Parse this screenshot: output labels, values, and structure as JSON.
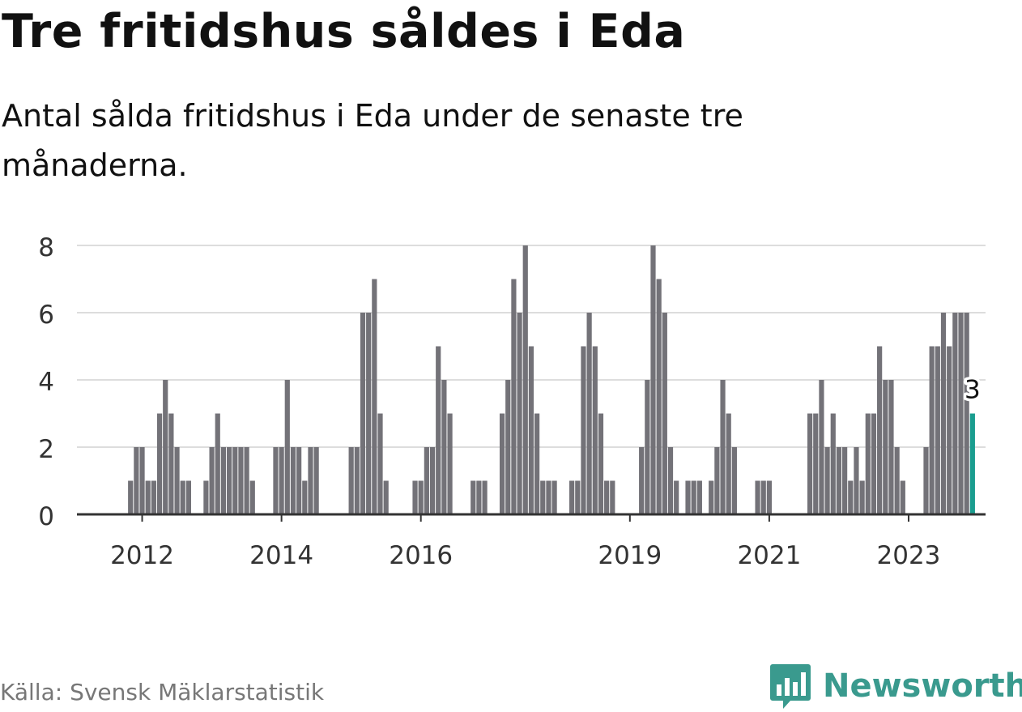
{
  "header": {
    "title": "Tre fritidshus såldes i Eda",
    "subtitle": "Antal sålda fritidshus i Eda under de senaste tre månaderna."
  },
  "footer": {
    "source": "Källa: Svensk Mäklarstatistik",
    "brand": "Newsworthy",
    "brand_icon": "bar-chart-logo-icon"
  },
  "colors": {
    "bar": "#737278",
    "highlight": "#1a9d8f",
    "grid": "#dddddd",
    "axis": "#333333",
    "brand": "#3a9a8e"
  },
  "chart_data": {
    "type": "bar",
    "x_unit": "month",
    "x": [
      "2011-01",
      "2011-02",
      "2011-03",
      "2011-04",
      "2011-05",
      "2011-06",
      "2011-07",
      "2011-08",
      "2011-09",
      "2011-10",
      "2011-11",
      "2011-12",
      "2012-01",
      "2012-02",
      "2012-03",
      "2012-04",
      "2012-05",
      "2012-06",
      "2012-07",
      "2012-08",
      "2012-09",
      "2012-10",
      "2012-11",
      "2012-12",
      "2013-01",
      "2013-02",
      "2013-03",
      "2013-04",
      "2013-05",
      "2013-06",
      "2013-07",
      "2013-08",
      "2013-09",
      "2013-10",
      "2013-11",
      "2013-12",
      "2014-01",
      "2014-02",
      "2014-03",
      "2014-04",
      "2014-05",
      "2014-06",
      "2014-07",
      "2014-08",
      "2014-09",
      "2014-10",
      "2014-11",
      "2014-12",
      "2015-01",
      "2015-02",
      "2015-03",
      "2015-04",
      "2015-05",
      "2015-06",
      "2015-07",
      "2015-08",
      "2015-09",
      "2015-10",
      "2015-11",
      "2015-12",
      "2016-01",
      "2016-02",
      "2016-03",
      "2016-04",
      "2016-05",
      "2016-06",
      "2016-07",
      "2016-08",
      "2016-09",
      "2016-10",
      "2016-11",
      "2016-12",
      "2017-01",
      "2017-02",
      "2017-03",
      "2017-04",
      "2017-05",
      "2017-06",
      "2017-07",
      "2017-08",
      "2017-09",
      "2017-10",
      "2017-11",
      "2017-12",
      "2018-01",
      "2018-02",
      "2018-03",
      "2018-04",
      "2018-05",
      "2018-06",
      "2018-07",
      "2018-08",
      "2018-09",
      "2018-10",
      "2018-11",
      "2018-12",
      "2019-01",
      "2019-02",
      "2019-03",
      "2019-04",
      "2019-05",
      "2019-06",
      "2019-07",
      "2019-08",
      "2019-09",
      "2019-10",
      "2019-11",
      "2019-12",
      "2020-01",
      "2020-02",
      "2020-03",
      "2020-04",
      "2020-05",
      "2020-06",
      "2020-07",
      "2020-08",
      "2020-09",
      "2020-10",
      "2020-11",
      "2020-12",
      "2021-01",
      "2021-02",
      "2021-03",
      "2021-04",
      "2021-05",
      "2021-06",
      "2021-07",
      "2021-08",
      "2021-09",
      "2021-10",
      "2021-11",
      "2021-12",
      "2022-01",
      "2022-02",
      "2022-03",
      "2022-04",
      "2022-05",
      "2022-06",
      "2022-07",
      "2022-08",
      "2022-09",
      "2022-10",
      "2022-11",
      "2022-12",
      "2023-01",
      "2023-02",
      "2023-03",
      "2023-04",
      "2023-05",
      "2023-06",
      "2023-07",
      "2023-08",
      "2023-09",
      "2023-10",
      "2023-11",
      "2023-12"
    ],
    "values": [
      0,
      0,
      0,
      0,
      0,
      0,
      0,
      0,
      0,
      0,
      1,
      2,
      2,
      1,
      1,
      3,
      4,
      3,
      2,
      1,
      1,
      0,
      0,
      1,
      2,
      3,
      2,
      2,
      2,
      2,
      2,
      1,
      0,
      0,
      0,
      2,
      2,
      4,
      2,
      2,
      1,
      2,
      2,
      0,
      0,
      0,
      0,
      0,
      2,
      2,
      6,
      6,
      7,
      3,
      1,
      0,
      0,
      0,
      0,
      1,
      1,
      2,
      2,
      5,
      4,
      3,
      0,
      0,
      0,
      1,
      1,
      1,
      0,
      0,
      3,
      4,
      7,
      6,
      8,
      5,
      3,
      1,
      1,
      1,
      0,
      0,
      1,
      1,
      5,
      6,
      5,
      3,
      1,
      1,
      0,
      0,
      0,
      0,
      2,
      4,
      8,
      7,
      6,
      2,
      1,
      0,
      1,
      1,
      1,
      0,
      1,
      2,
      4,
      3,
      2,
      0,
      0,
      0,
      1,
      1,
      1,
      0,
      0,
      0,
      0,
      0,
      0,
      3,
      3,
      4,
      2,
      3,
      2,
      2,
      1,
      2,
      1,
      3,
      3,
      5,
      4,
      4,
      2,
      1,
      0,
      0,
      0,
      2,
      5,
      5,
      6,
      5,
      6,
      6,
      6,
      3
    ],
    "highlight_index": 155,
    "highlight_label": "3",
    "ylim": [
      0,
      8
    ],
    "y_ticks": [
      0,
      2,
      4,
      6,
      8
    ],
    "x_ticks": [
      {
        "label": "2012",
        "at": "2012-01"
      },
      {
        "label": "2014",
        "at": "2014-01"
      },
      {
        "label": "2016",
        "at": "2016-01"
      },
      {
        "label": "2019",
        "at": "2019-01"
      },
      {
        "label": "2021",
        "at": "2021-01"
      },
      {
        "label": "2023",
        "at": "2023-01"
      }
    ],
    "grid": true
  }
}
